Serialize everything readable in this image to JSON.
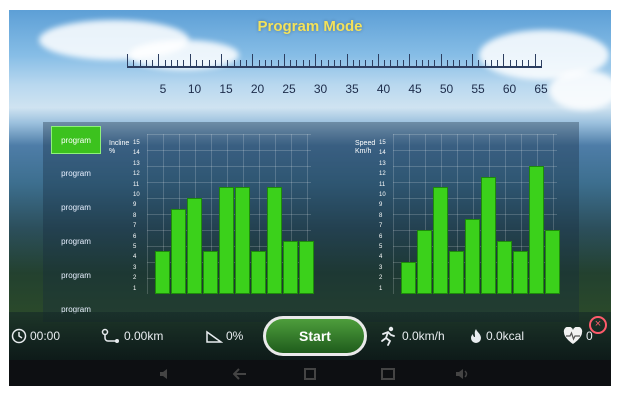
{
  "title": "Program Mode",
  "ruler": {
    "labels": [
      "5",
      "10",
      "15",
      "20",
      "25",
      "30",
      "35",
      "40",
      "45",
      "50",
      "55",
      "60",
      "65"
    ]
  },
  "programs": [
    {
      "label": "program"
    },
    {
      "label": "program"
    },
    {
      "label": "program"
    },
    {
      "label": "program"
    },
    {
      "label": "program"
    },
    {
      "label": "program"
    }
  ],
  "incline_chart": {
    "title": "Incline %",
    "y_labels": [
      "15",
      "14",
      "13",
      "12",
      "11",
      "10",
      "9",
      "8",
      "7",
      "6",
      "5",
      "4",
      "3",
      "2",
      "1"
    ],
    "values": [
      4,
      8,
      9,
      4,
      10,
      10,
      4,
      10,
      5,
      5
    ]
  },
  "speed_chart": {
    "title": "Speed Km/h",
    "y_labels": [
      "15",
      "14",
      "13",
      "12",
      "11",
      "10",
      "9",
      "8",
      "7",
      "6",
      "5",
      "4",
      "3",
      "2",
      "1"
    ],
    "values": [
      3,
      6,
      10,
      4,
      7,
      11,
      5,
      4,
      12,
      6
    ]
  },
  "stats": {
    "time": "00:00",
    "distance": "0.00km",
    "incline": "0%",
    "start_label": "Start",
    "speed": "0.0km/h",
    "calories": "0.0kcal",
    "heart": "0"
  },
  "colors": {
    "bar": "#3bd11b",
    "active_program": "#3cc21e",
    "title": "#f4e25a"
  }
}
